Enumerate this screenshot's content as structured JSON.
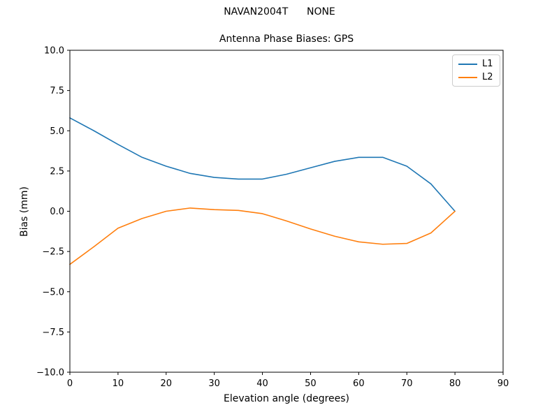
{
  "figure": {
    "suptitle": "NAVAN2004T      NONE",
    "background": "#ffffff"
  },
  "chart_data": {
    "type": "line",
    "title": "Antenna Phase Biases: GPS",
    "xlabel": "Elevation angle (degrees)",
    "ylabel": "Bias (mm)",
    "xlim": [
      0,
      90
    ],
    "ylim": [
      -10,
      10
    ],
    "xticks": [
      0,
      10,
      20,
      30,
      40,
      50,
      60,
      70,
      80,
      90
    ],
    "yticks": [
      10.0,
      7.5,
      5.0,
      2.5,
      0.0,
      -2.5,
      -5.0,
      -7.5,
      -10.0
    ],
    "grid": false,
    "axis_color": "#000000",
    "legend": {
      "position": "upper-right",
      "entries": [
        "L1",
        "L2"
      ]
    },
    "x": [
      0,
      5,
      10,
      15,
      20,
      25,
      30,
      35,
      40,
      45,
      50,
      55,
      60,
      65,
      70,
      75,
      80
    ],
    "series": [
      {
        "name": "L1",
        "color": "#1f77b4",
        "values": [
          5.8,
          5.0,
          4.15,
          3.35,
          2.8,
          2.35,
          2.1,
          2.0,
          2.0,
          2.3,
          2.7,
          3.1,
          3.35,
          3.35,
          2.8,
          1.7,
          0.0
        ]
      },
      {
        "name": "L2",
        "color": "#ff7f0e",
        "values": [
          -3.3,
          -2.2,
          -1.05,
          -0.45,
          0.0,
          0.2,
          0.1,
          0.05,
          -0.15,
          -0.6,
          -1.1,
          -1.55,
          -1.9,
          -2.05,
          -2.0,
          -1.35,
          0.0
        ]
      }
    ]
  }
}
